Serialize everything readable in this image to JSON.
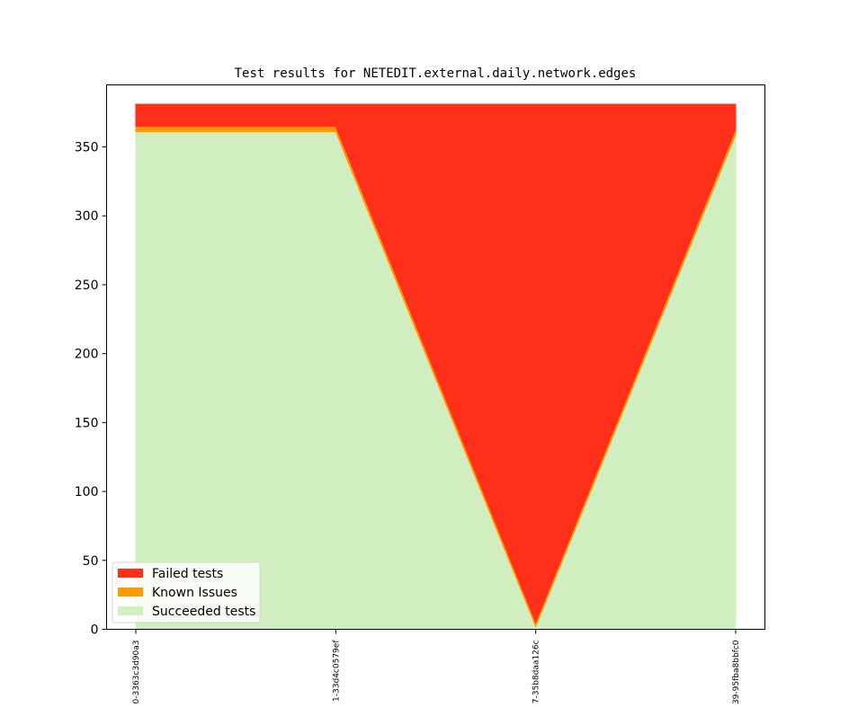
{
  "chart_data": {
    "type": "area",
    "title": "Test results for NETEDIT.external.daily.network.edges",
    "xlabel": "",
    "ylabel": "",
    "categories": [
      "0-3363c3d90a3",
      "1-33d4c0579ef",
      "7-35b8daa126c",
      "39-95fba8bbfc0"
    ],
    "ylim": [
      0,
      395
    ],
    "yticks": [
      0,
      50,
      100,
      150,
      200,
      250,
      300,
      350
    ],
    "stacked": true,
    "series": [
      {
        "name": "Succeeded tests",
        "values": [
          361,
          361,
          2,
          359
        ],
        "color": "#d0eec0"
      },
      {
        "name": "Known Issues",
        "values": [
          4,
          4,
          3,
          4
        ],
        "color": "#ff9900"
      },
      {
        "name": "Failed tests",
        "values": [
          16,
          16,
          376,
          18
        ],
        "color": "#ff3019"
      }
    ],
    "legend": {
      "position": "lower-left",
      "entries": [
        "Failed tests",
        "Known Issues",
        "Succeeded tests"
      ]
    },
    "grid": false
  }
}
